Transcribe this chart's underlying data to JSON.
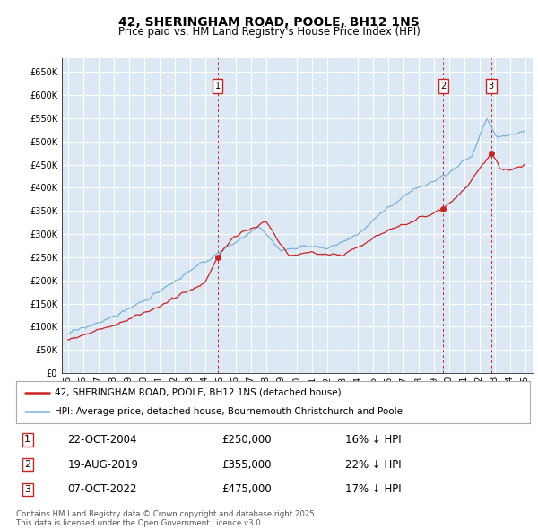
{
  "title": "42, SHERINGHAM ROAD, POOLE, BH12 1NS",
  "subtitle": "Price paid vs. HM Land Registry's House Price Index (HPI)",
  "ylim": [
    0,
    680000
  ],
  "background_color": "#dce9f5",
  "grid_color": "#ffffff",
  "hpi_line_color": "#7ab3d9",
  "price_line_color": "#cc2222",
  "annotation_box_color": "#cc2222",
  "legend_label_property": "42, SHERINGHAM ROAD, POOLE, BH12 1NS (detached house)",
  "legend_label_hpi": "HPI: Average price, detached house, Bournemouth Christchurch and Poole",
  "sales": [
    {
      "num": 1,
      "date": "22-OCT-2004",
      "price": 250000,
      "year": 2004.82,
      "pct": "16%",
      "direction": "↓"
    },
    {
      "num": 2,
      "date": "19-AUG-2019",
      "price": 355000,
      "year": 2019.64,
      "pct": "22%",
      "direction": "↓"
    },
    {
      "num": 3,
      "date": "07-OCT-2022",
      "price": 475000,
      "year": 2022.78,
      "pct": "17%",
      "direction": "↓"
    }
  ],
  "footer_line1": "Contains HM Land Registry data © Crown copyright and database right 2025.",
  "footer_line2": "This data is licensed under the Open Government Licence v3.0."
}
